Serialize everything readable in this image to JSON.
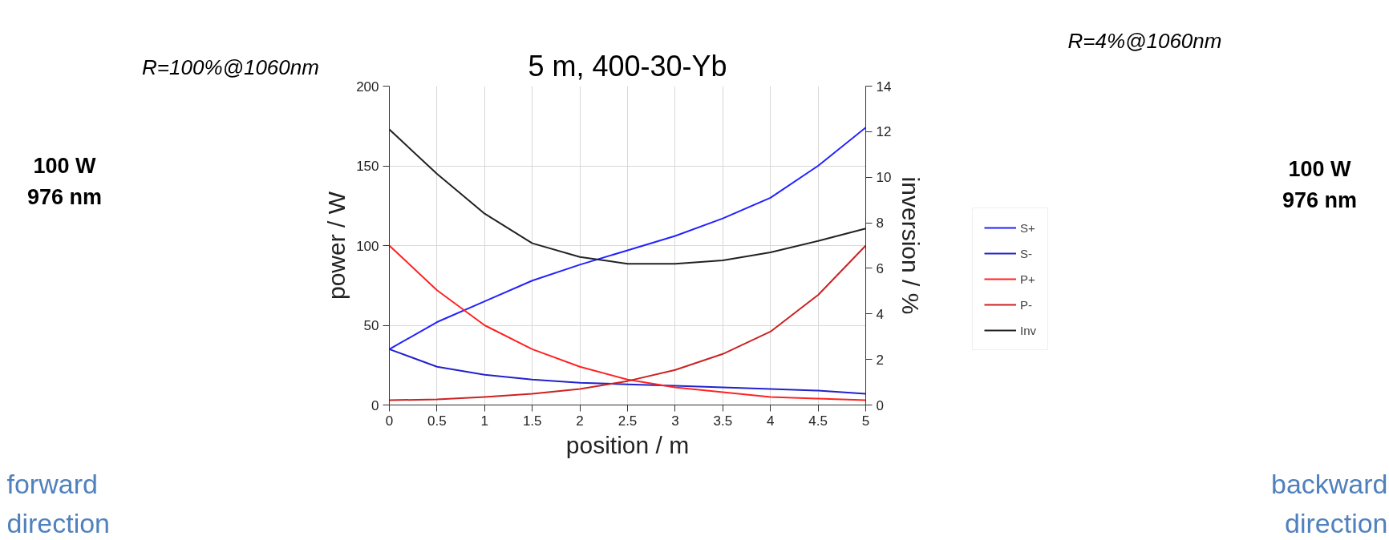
{
  "chart_data": {
    "type": "line",
    "title": "5 m, 400-30-Yb",
    "xlabel": "position / m",
    "ylabel": "power / W",
    "y2label": "inversion / %",
    "annotations": [
      "R=100%@1060nm",
      "R=4%@1060nm",
      "100 W\n976 nm",
      "100 W\n976 nm",
      "forward\ndirection",
      "backward\ndirection"
    ],
    "x": [
      0,
      0.5,
      1,
      1.5,
      2,
      2.5,
      3,
      3.5,
      4,
      4.5,
      5
    ],
    "series": [
      {
        "name": "S+",
        "color": "#2222ff",
        "values": [
          35,
          52,
          65,
          78,
          88,
          97,
          106,
          117,
          130,
          150,
          174
        ]
      },
      {
        "name": "S-",
        "color": "#2222cc",
        "values": [
          35,
          24,
          19,
          16,
          14,
          13,
          12,
          11,
          10,
          9,
          7
        ]
      },
      {
        "name": "P+",
        "color": "#ff2222",
        "values": [
          100,
          72,
          50,
          35,
          24,
          16,
          11,
          8,
          5,
          4,
          3
        ]
      },
      {
        "name": "P-",
        "color": "#cc2222",
        "values": [
          3,
          3.5,
          5,
          7,
          10,
          15,
          22,
          32,
          46,
          69,
          100
        ]
      },
      {
        "name": "Inv",
        "color": "#222222",
        "axis": "y2",
        "values": [
          12.1,
          10.15,
          8.4,
          7.1,
          6.5,
          6.2,
          6.2,
          6.35,
          6.7,
          7.2,
          7.75
        ]
      }
    ],
    "xlim": [
      0,
      5
    ],
    "xticks": [
      0,
      0.5,
      1,
      1.5,
      2,
      2.5,
      3,
      3.5,
      4,
      4.5,
      5
    ],
    "ylim": [
      0,
      200
    ],
    "yticks": [
      0,
      50,
      100,
      150,
      200
    ],
    "y2lim": [
      0,
      14
    ],
    "y2ticks": [
      0,
      2,
      4,
      6,
      8,
      10,
      12,
      14
    ],
    "grid": true,
    "legend": "right",
    "line_style": "solid",
    "marker": "none"
  }
}
